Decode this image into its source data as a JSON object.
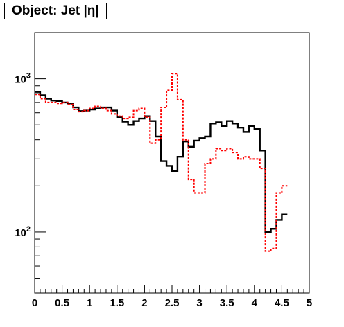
{
  "chart_data": {
    "type": "line",
    "title": "Object: Jet |η|",
    "xlabel": "",
    "ylabel": "",
    "xlim": [
      0,
      5
    ],
    "ylim": [
      40,
      2000
    ],
    "yscale": "log",
    "grid": false,
    "legend": "none",
    "x_ticks": [
      "0",
      "0.5",
      "1",
      "1.5",
      "2",
      "2.5",
      "3",
      "3.5",
      "4",
      "4.5",
      "5"
    ],
    "y_ticks": [
      {
        "value": 100,
        "base": "10",
        "exp": "2"
      },
      {
        "value": 1000,
        "base": "10",
        "exp": "3"
      }
    ],
    "bin_edges": [
      0,
      0.1,
      0.2,
      0.3,
      0.4,
      0.5,
      0.6,
      0.7,
      0.8,
      0.9,
      1.0,
      1.1,
      1.2,
      1.3,
      1.4,
      1.5,
      1.6,
      1.7,
      1.8,
      1.9,
      2.0,
      2.1,
      2.2,
      2.3,
      2.4,
      2.5,
      2.6,
      2.7,
      2.8,
      2.9,
      3.0,
      3.1,
      3.2,
      3.3,
      3.4,
      3.5,
      3.6,
      3.7,
      3.8,
      3.9,
      4.0,
      4.1,
      4.2,
      4.3,
      4.4,
      4.5,
      4.6,
      4.7,
      4.8,
      4.9,
      5.0
    ],
    "series": [
      {
        "color": "#000000",
        "dash": "solid",
        "values": [
          820,
          780,
          740,
          720,
          715,
          700,
          690,
          650,
          615,
          620,
          630,
          640,
          650,
          650,
          620,
          560,
          525,
          500,
          530,
          550,
          570,
          530,
          420,
          290,
          270,
          250,
          310,
          390,
          360,
          395,
          410,
          420,
          510,
          520,
          490,
          530,
          510,
          480,
          450,
          490,
          470,
          340,
          100,
          105,
          120,
          130
        ]
      },
      {
        "color": "#ff0000",
        "dash": "dashed",
        "values": [
          790,
          740,
          700,
          700,
          690,
          700,
          680,
          630,
          610,
          620,
          640,
          660,
          640,
          620,
          590,
          570,
          550,
          560,
          620,
          640,
          560,
          380,
          400,
          650,
          840,
          1080,
          730,
          400,
          220,
          180,
          180,
          280,
          300,
          350,
          340,
          350,
          330,
          300,
          310,
          300,
          300,
          260,
          75,
          78,
          180,
          200
        ]
      }
    ]
  }
}
